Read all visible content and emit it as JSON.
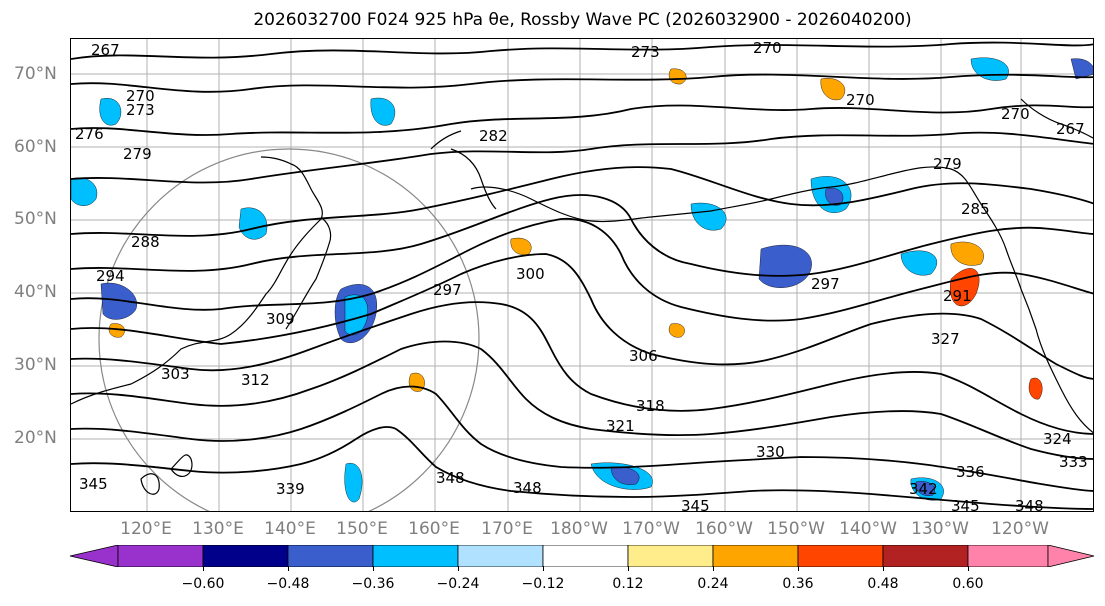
{
  "title": "2026032700 F024 925 hPa θe, Rossby Wave PC (2026032900 - 2026040200)",
  "map": {
    "lat_labels": [
      "70°N",
      "60°N",
      "50°N",
      "40°N",
      "30°N",
      "20°N"
    ],
    "lon_labels": [
      "120°E",
      "130°E",
      "140°E",
      "150°E",
      "160°E",
      "170°E",
      "180°W",
      "170°W",
      "160°W",
      "150°W",
      "140°W",
      "130°W",
      "120°W"
    ],
    "contour_labels": [
      "267",
      "270",
      "273",
      "270",
      "270",
      "270",
      "267",
      "276",
      "279",
      "273",
      "282",
      "279",
      "285",
      "288",
      "294",
      "291",
      "297",
      "297",
      "300",
      "303",
      "306",
      "309",
      "312",
      "318",
      "321",
      "324",
      "327",
      "330",
      "333",
      "336",
      "339",
      "342",
      "345",
      "345",
      "345",
      "348",
      "348",
      "348"
    ],
    "contour_color": "#000000",
    "coast_color": "#000000",
    "grid_color": "#b0b0b0"
  },
  "colorbar": {
    "tick_labels": [
      "−0.60",
      "−0.48",
      "−0.36",
      "−0.24",
      "−0.12",
      "0.12",
      "0.24",
      "0.36",
      "0.48",
      "0.60"
    ],
    "colors": [
      "#9932cc",
      "#00008b",
      "#3a5fcd",
      "#00bfff",
      "#b0e2ff",
      "#ffffff",
      "#ffec8b",
      "#ffa500",
      "#ff4500",
      "#b22222",
      "#ff82ab"
    ]
  }
}
